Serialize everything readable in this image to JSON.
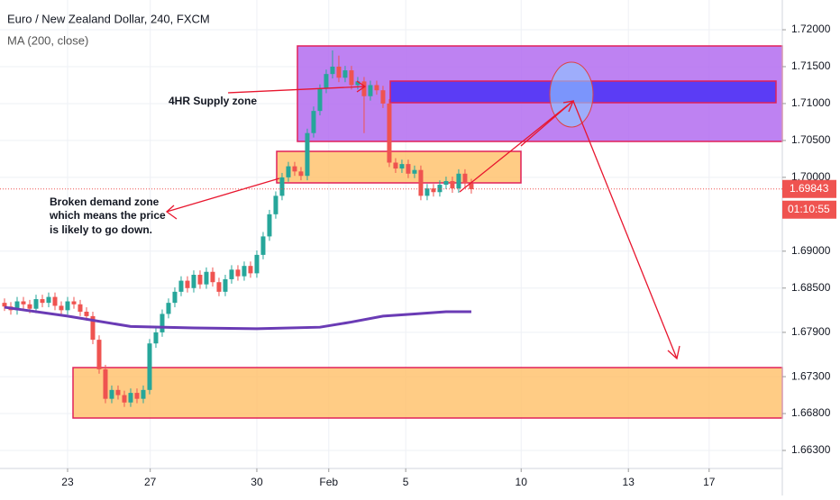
{
  "chart_data": {
    "type": "candlestick",
    "title": "Euro / New Zealand Dollar, 240, FXCM",
    "indicator_label": "MA (200, close)",
    "x": [
      0,
      1,
      2,
      3,
      4,
      5,
      6,
      7,
      8,
      9,
      10,
      11,
      12,
      13,
      14,
      15,
      16,
      17,
      18,
      19,
      20,
      21,
      22,
      23,
      24,
      25,
      26,
      27,
      28,
      29,
      30,
      31,
      32,
      33,
      34,
      35,
      36,
      37,
      38,
      39,
      40,
      41,
      42,
      43,
      44,
      45,
      46,
      47,
      48,
      49,
      50,
      51,
      52,
      53,
      54,
      55,
      56,
      57,
      58,
      59,
      60,
      61,
      62,
      63,
      64,
      65,
      66,
      67,
      68,
      69,
      70,
      71,
      72,
      73,
      74
    ],
    "open": [
      1.683,
      1.6825,
      1.682,
      1.6832,
      1.6828,
      1.6822,
      1.6835,
      1.683,
      1.6838,
      1.6826,
      1.682,
      1.6832,
      1.6828,
      1.6818,
      1.6812,
      1.678,
      1.674,
      1.67,
      1.6712,
      1.6705,
      1.6695,
      1.6708,
      1.67,
      1.6712,
      1.6775,
      1.679,
      1.6815,
      1.683,
      1.6845,
      1.686,
      1.685,
      1.6868,
      1.6855,
      1.6872,
      1.6858,
      1.6845,
      1.6862,
      1.6875,
      1.6866,
      1.688,
      1.687,
      1.6895,
      1.692,
      1.695,
      1.6975,
      1.7,
      1.7015,
      1.7008,
      1.7002,
      1.706,
      1.709,
      1.712,
      1.714,
      1.715,
      1.7135,
      1.7145,
      1.7125,
      1.713,
      1.711,
      1.7125,
      1.7118,
      1.71,
      1.702,
      1.7012,
      1.7018,
      1.7005,
      1.701,
      1.6975,
      1.6985,
      1.698,
      1.699,
      1.6995,
      1.6985,
      1.7005,
      1.6992
    ],
    "high": [
      1.6836,
      1.6831,
      1.6838,
      1.6838,
      1.6834,
      1.6841,
      1.6841,
      1.6844,
      1.6844,
      1.6832,
      1.6838,
      1.6838,
      1.6834,
      1.6824,
      1.6818,
      1.6786,
      1.6746,
      1.6718,
      1.6718,
      1.6711,
      1.6714,
      1.6714,
      1.6718,
      1.6781,
      1.6796,
      1.6821,
      1.6836,
      1.6851,
      1.6866,
      1.6866,
      1.6874,
      1.6874,
      1.6878,
      1.6878,
      1.6864,
      1.6868,
      1.6881,
      1.6881,
      1.6886,
      1.6886,
      1.6901,
      1.6926,
      1.6956,
      1.6981,
      1.7006,
      1.7021,
      1.7021,
      1.7014,
      1.7066,
      1.7096,
      1.7126,
      1.7146,
      1.7172,
      1.7165,
      1.7151,
      1.7151,
      1.7136,
      1.7136,
      1.7131,
      1.7131,
      1.7124,
      1.7106,
      1.7026,
      1.7024,
      1.7024,
      1.7016,
      1.7016,
      1.6991,
      1.6991,
      1.6996,
      1.7001,
      1.7001,
      1.7011,
      1.7011,
      1.6998
    ],
    "low": [
      1.6819,
      1.6814,
      1.6814,
      1.6822,
      1.6816,
      1.6816,
      1.6824,
      1.6824,
      1.682,
      1.6814,
      1.6814,
      1.6822,
      1.6812,
      1.6806,
      1.6774,
      1.6734,
      1.6694,
      1.6694,
      1.6699,
      1.6689,
      1.6689,
      1.6694,
      1.6694,
      1.6706,
      1.6769,
      1.6784,
      1.6809,
      1.6824,
      1.6839,
      1.6844,
      1.6844,
      1.6849,
      1.6849,
      1.6852,
      1.6839,
      1.6839,
      1.6856,
      1.686,
      1.686,
      1.6864,
      1.6864,
      1.6889,
      1.6914,
      1.6944,
      1.6969,
      1.6994,
      1.7002,
      1.6996,
      1.6996,
      1.7054,
      1.7084,
      1.7114,
      1.7134,
      1.7129,
      1.7129,
      1.7119,
      1.7119,
      1.706,
      1.7104,
      1.7112,
      1.7094,
      1.7014,
      1.7006,
      1.7006,
      1.6999,
      1.6999,
      1.6969,
      1.6969,
      1.6974,
      1.6974,
      1.6984,
      1.6979,
      1.6979,
      1.6986,
      1.6978
    ],
    "close": [
      1.6825,
      1.682,
      1.6832,
      1.6828,
      1.6822,
      1.6835,
      1.683,
      1.6838,
      1.6826,
      1.682,
      1.6832,
      1.6828,
      1.6818,
      1.6812,
      1.678,
      1.674,
      1.67,
      1.6712,
      1.6705,
      1.6695,
      1.6708,
      1.67,
      1.6712,
      1.6775,
      1.679,
      1.6815,
      1.683,
      1.6845,
      1.686,
      1.685,
      1.6868,
      1.6855,
      1.6872,
      1.6858,
      1.6845,
      1.6862,
      1.6875,
      1.6866,
      1.688,
      1.687,
      1.6895,
      1.692,
      1.695,
      1.6975,
      1.7,
      1.7015,
      1.7008,
      1.7002,
      1.706,
      1.709,
      1.712,
      1.714,
      1.715,
      1.7135,
      1.7145,
      1.7125,
      1.713,
      1.711,
      1.7125,
      1.7118,
      1.71,
      1.702,
      1.7012,
      1.7018,
      1.7005,
      1.701,
      1.6975,
      1.6985,
      1.698,
      1.699,
      1.6995,
      1.6985,
      1.7005,
      1.6992,
      1.6984
    ],
    "up_color": "#26a69a",
    "down_color": "#ef5350",
    "ma": {
      "color": "#6a3bb5",
      "x": [
        0,
        10,
        20,
        30,
        40,
        50,
        55,
        60,
        65,
        70,
        74
      ],
      "values": [
        1.6824,
        1.6812,
        1.6798,
        1.6796,
        1.6795,
        1.6797,
        1.6804,
        1.6812,
        1.6815,
        1.6818,
        1.6818
      ]
    },
    "last_price": {
      "value": 1.69843,
      "label": "1.69843"
    },
    "countdown": "01:10:55",
    "xlim": [
      -0.714,
      123.3
    ],
    "ylim": [
      1.66056,
      1.72403
    ],
    "xticks": [
      {
        "value": 10,
        "label": "23"
      },
      {
        "value": 23.1,
        "label": "27"
      },
      {
        "value": 40,
        "label": "30"
      },
      {
        "value": 51.4,
        "label": "Feb"
      },
      {
        "value": 63.6,
        "label": "5"
      },
      {
        "value": 81.9,
        "label": "10"
      },
      {
        "value": 98.9,
        "label": "13"
      },
      {
        "value": 111.7,
        "label": "17"
      }
    ],
    "yticks": [
      {
        "value": 1.72,
        "label": "1.72000"
      },
      {
        "value": 1.715,
        "label": "1.71500"
      },
      {
        "value": 1.71,
        "label": "1.71000"
      },
      {
        "value": 1.705,
        "label": "1.70500"
      },
      {
        "value": 1.7,
        "label": "1.70000"
      },
      {
        "value": 1.69,
        "label": "1.69000"
      },
      {
        "value": 1.685,
        "label": "1.68500"
      },
      {
        "value": 1.679,
        "label": "1.67900"
      },
      {
        "value": 1.673,
        "label": "1.67300"
      },
      {
        "value": 1.668,
        "label": "1.66800"
      },
      {
        "value": 1.663,
        "label": "1.66300"
      }
    ],
    "grid": true,
    "annotations": {
      "supply": "4HR Supply zone",
      "demand": [
        "Broken demand zone",
        "which means the price",
        "is likely to go down."
      ]
    }
  }
}
